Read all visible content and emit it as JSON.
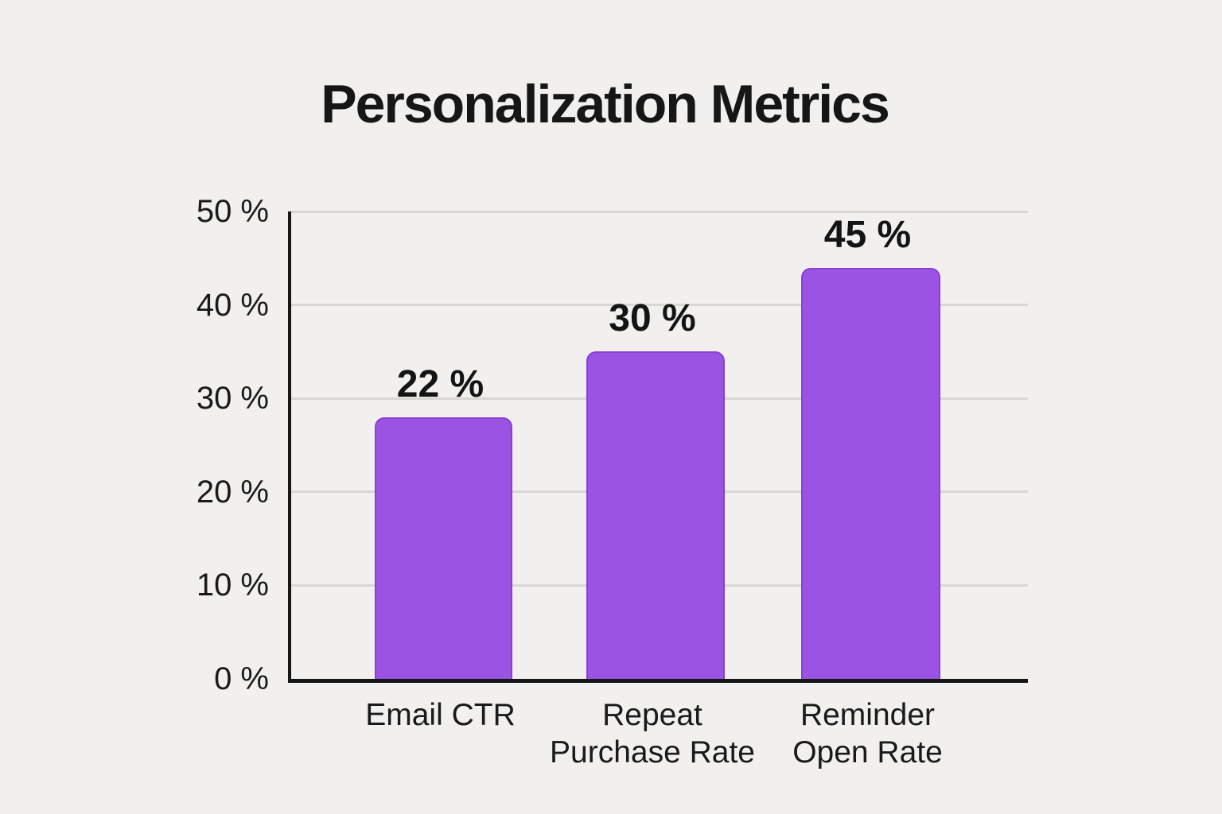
{
  "page": {
    "background_color": "#f1f0ee"
  },
  "chart_data": {
    "type": "bar",
    "title": "Personalization Metrics",
    "xlabel": "",
    "ylabel": "",
    "categories": [
      "Email CTR",
      "Repeat Purchase Rate",
      "Reminder Open Rate"
    ],
    "values": [
      22,
      30,
      45
    ],
    "value_labels": [
      "22 %",
      "30 %",
      "45 %"
    ],
    "bars": [
      {
        "category_lines": [
          "Email CTR"
        ],
        "value": 22,
        "value_label": "22 %",
        "drawn_height_pct": 28
      },
      {
        "category_lines": [
          "Repeat",
          "Purchase Rate"
        ],
        "value": 30,
        "value_label": "30 %",
        "drawn_height_pct": 35
      },
      {
        "category_lines": [
          "Reminder",
          "Open Rate"
        ],
        "value": 45,
        "value_label": "45 %",
        "drawn_height_pct": 44
      }
    ],
    "y_axis": {
      "min": 0,
      "max": 50,
      "tick_labels": [
        "50 %",
        "40 %",
        "30 %",
        "20 %",
        "10 %",
        "0 %"
      ],
      "grid": true
    },
    "legend": {
      "visible": false
    },
    "colors": {
      "bar_fill": "#9b53e3",
      "bar_border": "#8a3ed2",
      "grid": "#d8d7d4",
      "axis": "#161616",
      "text": "#1a1a1a",
      "background": "#f1f0ee"
    }
  }
}
